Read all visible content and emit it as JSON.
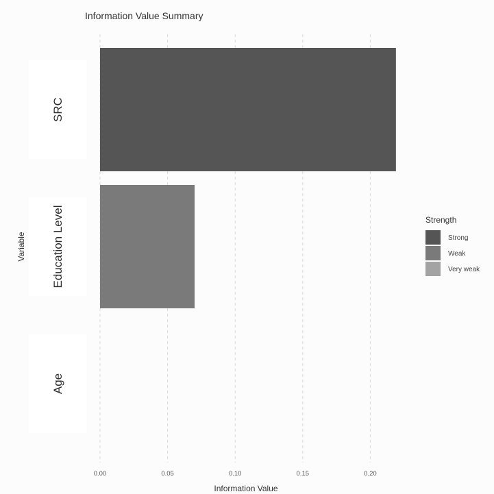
{
  "chart_data": {
    "type": "bar",
    "orientation": "horizontal",
    "title": "Information Value Summary",
    "xlabel": "Information Value",
    "ylabel": "Variable",
    "categories": [
      "SRC",
      "Education Level",
      "Age"
    ],
    "values": [
      0.219,
      0.07,
      0.0
    ],
    "strength": [
      "Strong",
      "Weak",
      "Very weak"
    ],
    "xlim": [
      0,
      0.22
    ],
    "xticks": [
      0.0,
      0.05,
      0.1,
      0.15,
      0.2
    ],
    "xtick_labels": [
      "0.00",
      "0.05",
      "0.10",
      "0.15",
      "0.20"
    ],
    "grid": "vertical dashed",
    "legend": {
      "title": "Strength",
      "position": "right",
      "entries": [
        {
          "label": "Strong",
          "color": "#555555"
        },
        {
          "label": "Weak",
          "color": "#7a7a7a"
        },
        {
          "label": "Very weak",
          "color": "#a3a3a3"
        }
      ]
    }
  }
}
